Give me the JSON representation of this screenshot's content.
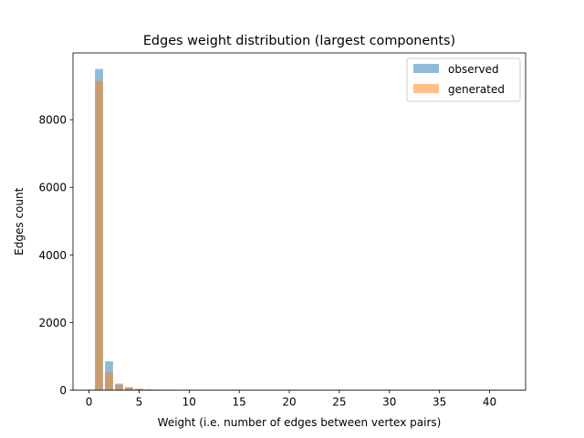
{
  "chart_data": {
    "type": "bar",
    "title": "Edges weight distribution (largest components)",
    "xlabel": "Weight (i.e. number of edges between vertex pairs)",
    "ylabel": "Edges count",
    "xlim": [
      -1.6,
      43.6
    ],
    "ylim": [
      0,
      9975
    ],
    "xticks": [
      0,
      5,
      10,
      15,
      20,
      25,
      30,
      35,
      40
    ],
    "yticks": [
      0,
      2000,
      4000,
      6000,
      8000
    ],
    "legend_position": "top-right",
    "bar_width": 0.8,
    "series": [
      {
        "name": "observed",
        "color": "#1f77b4",
        "alpha": 0.5,
        "x": [
          1,
          2,
          3,
          4,
          5,
          6,
          7,
          8
        ],
        "values": [
          9500,
          850,
          190,
          70,
          35,
          20,
          12,
          8
        ]
      },
      {
        "name": "generated",
        "color": "#ff7f0e",
        "alpha": 0.5,
        "x": [
          1,
          2,
          3,
          4,
          5,
          6,
          7,
          8
        ],
        "values": [
          9150,
          530,
          160,
          95,
          45,
          25,
          15,
          10
        ]
      }
    ]
  }
}
